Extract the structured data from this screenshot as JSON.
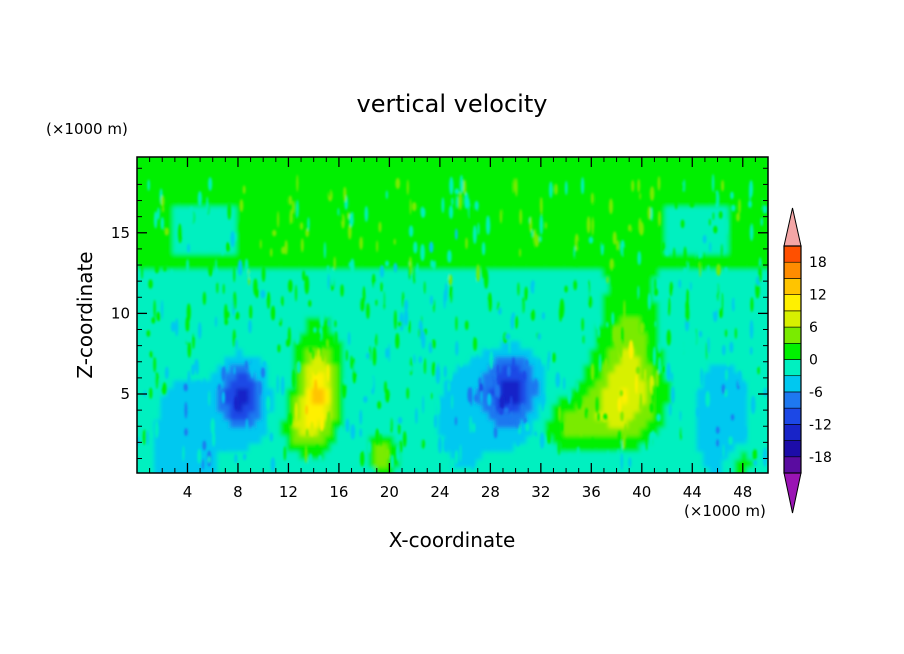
{
  "chart_data": {
    "type": "heatmap",
    "title": "vertical velocity",
    "xlabel": "X-coordinate",
    "ylabel": "Z-coordinate",
    "x_units": "(×1000 m)",
    "y_units": "(×1000 m)",
    "xlim": [
      0,
      50
    ],
    "ylim": [
      0.1,
      19.7
    ],
    "x_ticks": [
      4,
      8,
      12,
      16,
      20,
      24,
      28,
      32,
      36,
      40,
      44,
      48
    ],
    "y_ticks": [
      5,
      10,
      15
    ],
    "colorbar": {
      "levels": [
        -21,
        -18,
        -15,
        -12,
        -9,
        -6,
        -3,
        0,
        3,
        6,
        9,
        12,
        15,
        18,
        21
      ],
      "tick_labels": [
        -18,
        -12,
        -6,
        0,
        6,
        12,
        18
      ],
      "colors": [
        "#5a0ca0",
        "#1c0ca8",
        "#1824c8",
        "#1c48e6",
        "#1e78f0",
        "#00c8f0",
        "#00f0c0",
        "#00f000",
        "#7aeb00",
        "#d8f000",
        "#fff000",
        "#ffc400",
        "#ff8c00",
        "#ff5000",
        "#ff1e00"
      ],
      "extend_low_color": "#9a14b4",
      "extend_high_color": "#f4a6a6"
    },
    "features": [
      {
        "x": 8.4,
        "z": 5.0,
        "value": -14
      },
      {
        "x": 29.8,
        "z": 5.5,
        "value": -14
      },
      {
        "x": 14.5,
        "z": 5.2,
        "value": 12
      },
      {
        "x": 38.8,
        "z": 4.8,
        "value": 11
      },
      {
        "x": 19.5,
        "z": 1.5,
        "value": 7
      },
      {
        "x": 48.0,
        "z": 0.8,
        "value": 6
      }
    ]
  }
}
